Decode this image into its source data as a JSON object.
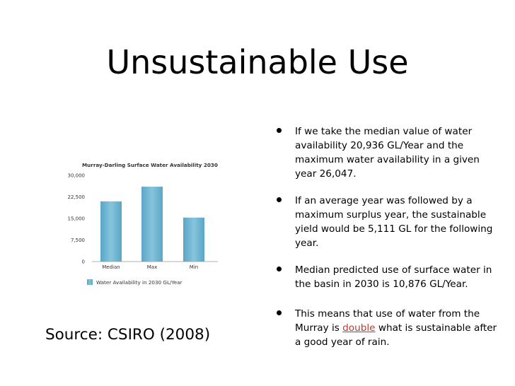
{
  "slide": {
    "title": "Unsustainable Use",
    "source": "Source: CSIRO (2008)",
    "highlight_color": "#c0392b",
    "bullets": [
      {
        "text": "If we take the median value of water availability 20,936 GL/Year and the maximum water availability in a given year 26,047."
      },
      {
        "text": "If an average year was followed by a maximum surplus year, the sustainable yield would be 5,111 GL for the following year."
      },
      {
        "text": "Median predicted use of surface water in the basin in 2030 is 10,876 GL/Year."
      },
      {
        "pre": "This means that use of water from the Murray is ",
        "highlight": "double",
        "post": " what is sustainable after a good year of rain."
      }
    ]
  },
  "chart_data": {
    "type": "bar",
    "title": "Murray-Darling Surface Water Availability 2030",
    "categories": [
      "Median",
      "Max",
      "Min"
    ],
    "series": [
      {
        "name": "Water Availability in 2030 GL/Year",
        "values": [
          20936,
          26047,
          15300
        ]
      }
    ],
    "ylim": [
      0,
      30000
    ],
    "yticks": [
      "30,000",
      "22,500",
      "15,000",
      "7,500",
      "0"
    ],
    "ytick_values": [
      30000,
      22500,
      15000,
      7500,
      0
    ],
    "grid": false,
    "legend_position": "bottom",
    "bar_color": "#6fb3cf"
  }
}
